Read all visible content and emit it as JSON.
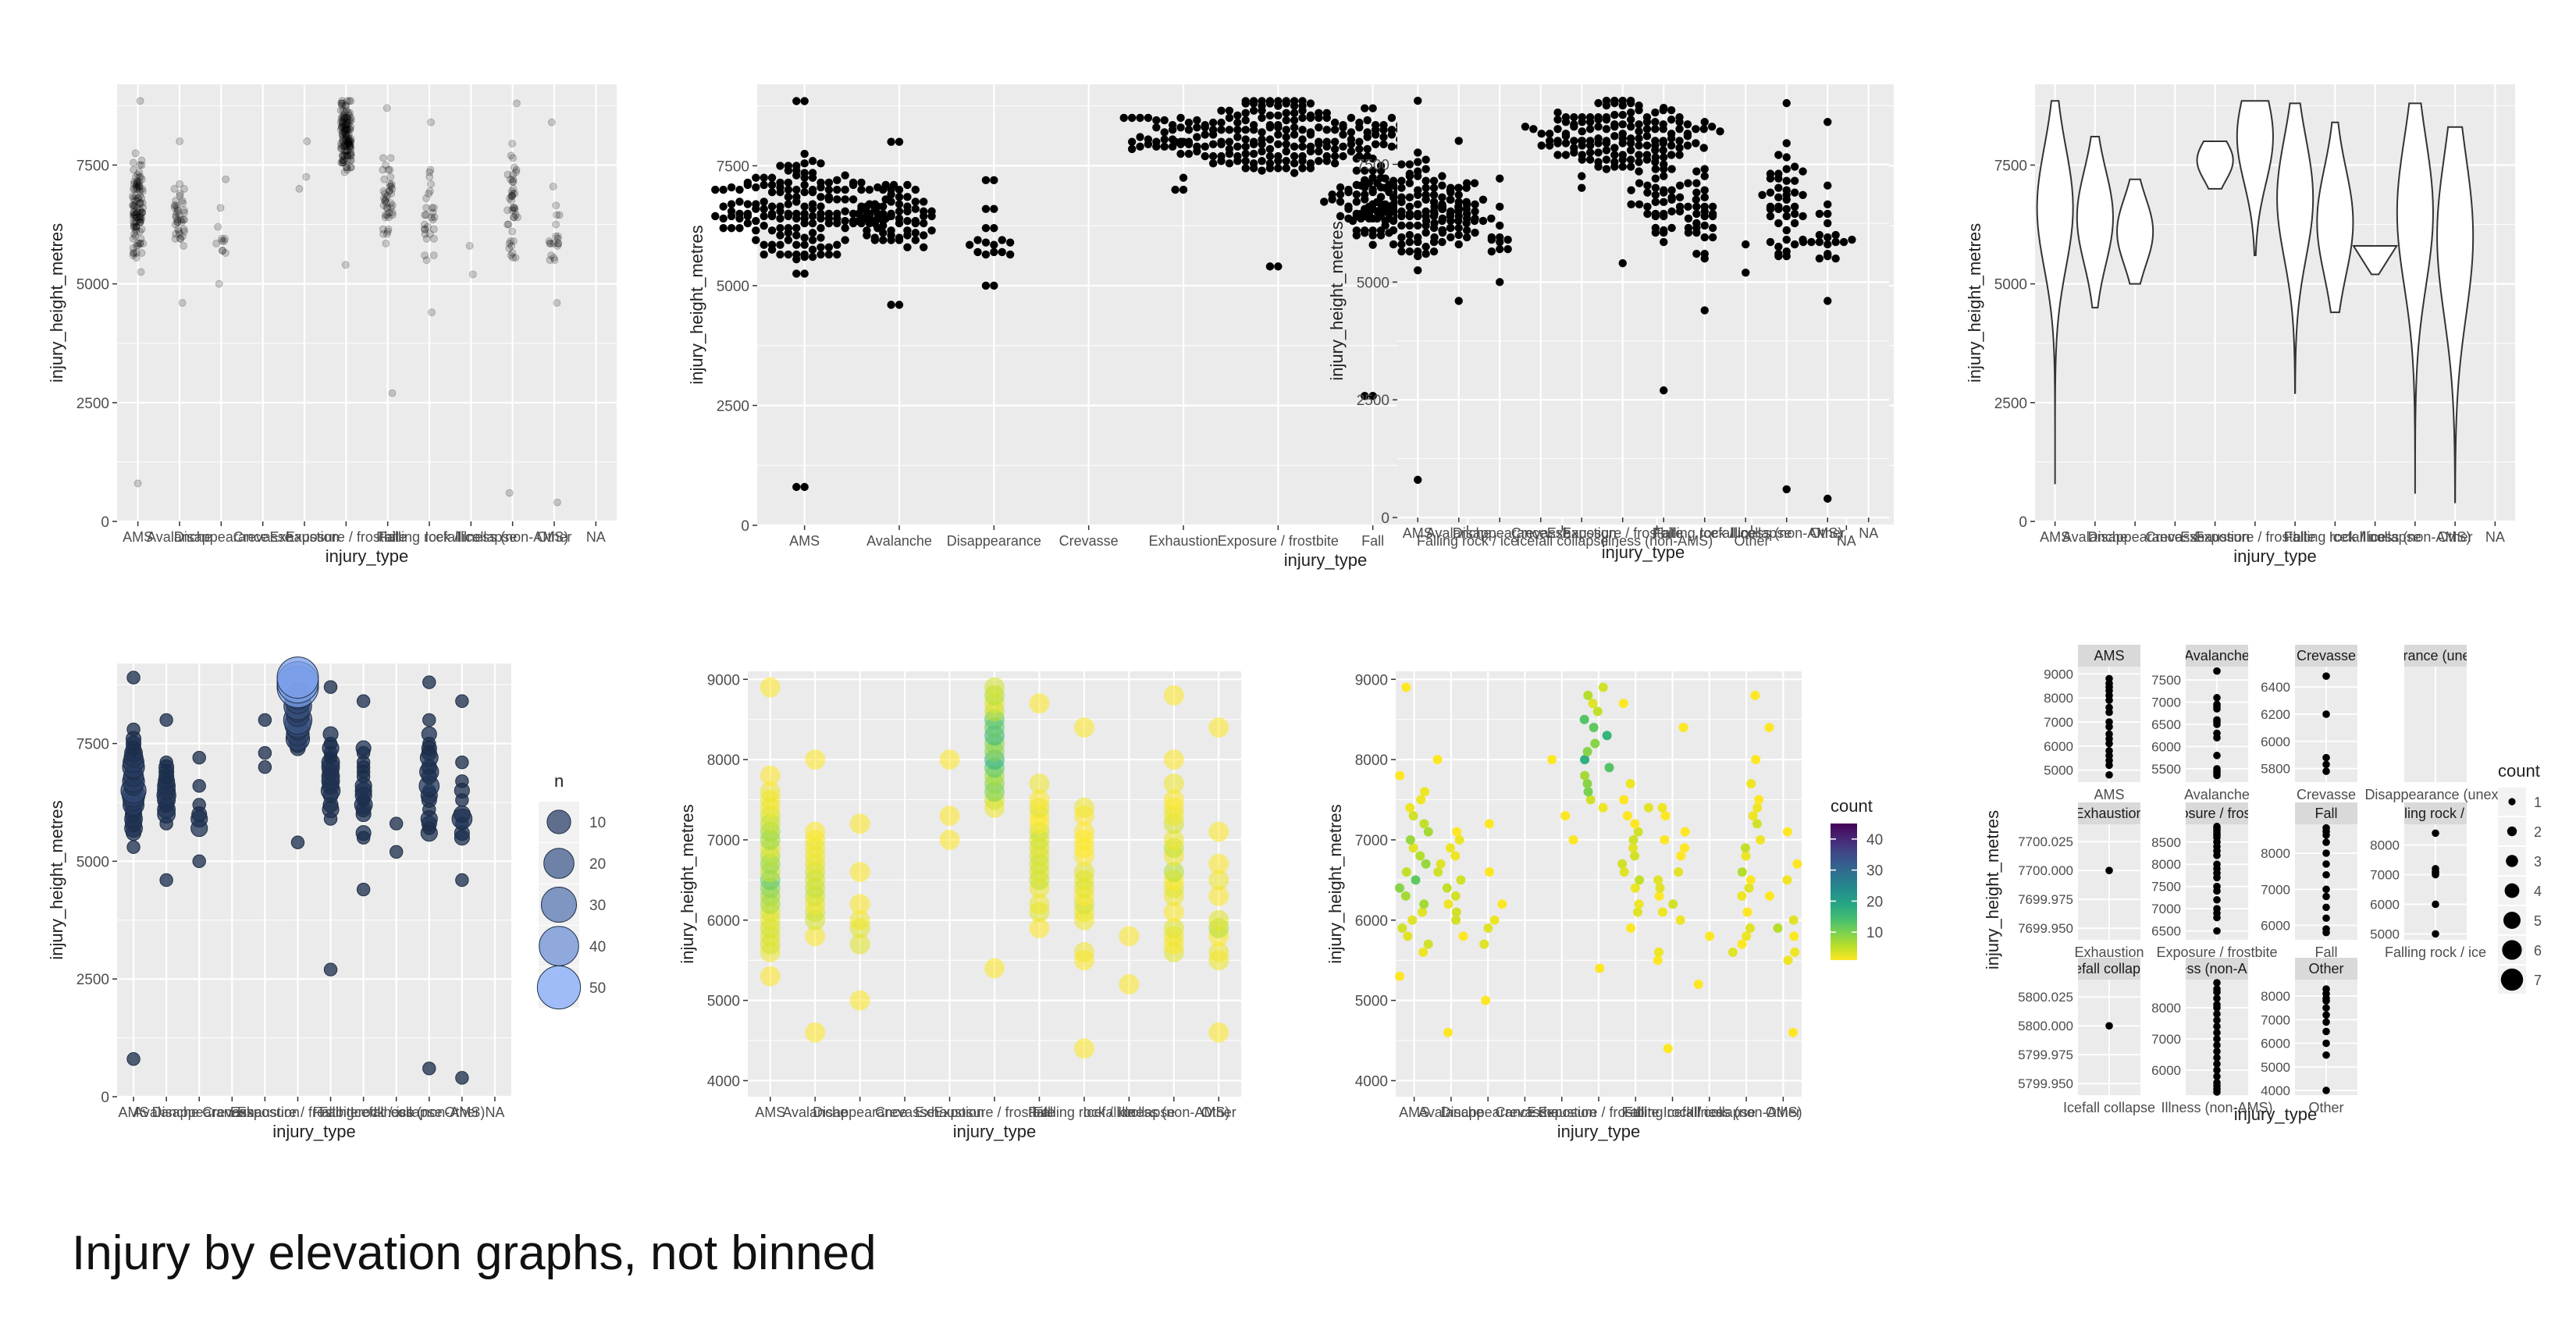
{
  "page": {
    "caption": "Injury by elevation graphs, not binned",
    "panel_bg": "#ebebeb",
    "grid_color": "#ffffff",
    "text_color": "#4d4d4d"
  },
  "chart_data": [
    {
      "id": "p1",
      "type": "scatter",
      "variant": "jitter-alpha",
      "title": "",
      "xlabel": "injury_type",
      "ylabel": "injury_height_metres",
      "categories": [
        "AMS",
        "Avalanche",
        "Disappearance",
        "Crevasse",
        "Exhaustion",
        "Exposure / frostbite",
        "Fall",
        "Falling rock / ice",
        "Icefall collapse",
        "Illness (non-AMS)",
        "Other",
        "NA"
      ],
      "ylim": [
        0,
        9200
      ],
      "yticks": [
        0,
        2500,
        5000,
        7500
      ],
      "summary": [
        {
          "category": "AMS",
          "min": 800,
          "max": 8850,
          "n": 110
        },
        {
          "category": "Avalanche",
          "min": 4600,
          "max": 8000,
          "n": 40
        },
        {
          "category": "Disappearance",
          "min": 5000,
          "max": 7200,
          "n": 12
        },
        {
          "category": "Exposure / frostbite",
          "min": 5400,
          "max": 8850,
          "n": 130
        },
        {
          "category": "Fall",
          "min": 2700,
          "max": 8700,
          "n": 45
        },
        {
          "category": "Falling rock / ice",
          "min": 4400,
          "max": 8400,
          "n": 30
        },
        {
          "category": "Icefall collapse",
          "min": 5200,
          "max": 5800,
          "n": 2
        },
        {
          "category": "Illness (non-AMS)",
          "min": 600,
          "max": 8800,
          "n": 45
        },
        {
          "category": "Other",
          "min": 400,
          "max": 8400,
          "n": 22
        }
      ]
    },
    {
      "id": "p2",
      "type": "scatter",
      "variant": "beeswarm",
      "title": "",
      "xlabel": "injury_type",
      "ylabel": "injury_height_metres",
      "categories": [
        "AMS",
        "Avalanche",
        "Disappearance",
        "Crevasse",
        "Exhaustion",
        "Exposure / frostbite",
        "Fall",
        "Falling rock / ice",
        "Icefall collapse",
        "Illness (non-AMS)",
        "Other",
        "NA"
      ],
      "ylim": [
        0,
        9200
      ],
      "yticks": [
        0,
        2500,
        5000,
        7500
      ]
    },
    {
      "id": "p3",
      "type": "scatter",
      "variant": "beeswarm-compact",
      "title": "",
      "xlabel": "injury_type",
      "ylabel": "injury_height_metres",
      "categories": [
        "AMS",
        "Avalanche",
        "Disappearance",
        "Crevasse",
        "Exhaustion",
        "Exposure / frostbite",
        "Fall",
        "Falling rock / ice",
        "Icefall collapse",
        "Illness (non-AMS)",
        "Other",
        "NA"
      ],
      "ylim": [
        0,
        9200
      ],
      "yticks": [
        0,
        2500,
        5000,
        7500
      ]
    },
    {
      "id": "p4",
      "type": "violin",
      "title": "",
      "xlabel": "injury_type",
      "ylabel": "injury_height_metres",
      "categories": [
        "AMS",
        "Avalanche",
        "Disappearance",
        "Crevasse",
        "Exhaustion",
        "Exposure / frostbite",
        "Fall",
        "Falling rock / ice",
        "Icefall collapse",
        "Illness (non-AMS)",
        "Other",
        "NA"
      ],
      "ylim": [
        0,
        9200
      ],
      "yticks": [
        0,
        2500,
        5000,
        7500
      ],
      "violins": [
        {
          "category": "AMS",
          "min": 800,
          "max": 8850
        },
        {
          "category": "Avalanche",
          "min": 4500,
          "max": 8100
        },
        {
          "category": "Disappearance",
          "min": 5000,
          "max": 7200
        },
        {
          "category": "Exhaustion",
          "min": 7000,
          "max": 8000
        },
        {
          "category": "Exposure / frostbite",
          "min": 5600,
          "max": 8850
        },
        {
          "category": "Fall",
          "min": 2700,
          "max": 8800
        },
        {
          "category": "Falling rock / ice",
          "min": 4400,
          "max": 8400
        },
        {
          "category": "Icefall collapse",
          "min": 5200,
          "max": 5800
        },
        {
          "category": "Illness (non-AMS)",
          "min": 600,
          "max": 8800
        },
        {
          "category": "Other",
          "min": 400,
          "max": 8300
        }
      ]
    },
    {
      "id": "p5",
      "type": "scatter",
      "variant": "count-size",
      "title": "",
      "xlabel": "injury_type",
      "ylabel": "injury_height_metres",
      "categories": [
        "AMS",
        "Avalanche",
        "Disappearance",
        "Crevasse",
        "Exhaustion",
        "Exposure / frostbite",
        "Fall",
        "Falling rock / ice",
        "Icefall collapse",
        "Illness (non-AMS)",
        "Other",
        "NA"
      ],
      "ylim": [
        0,
        9200
      ],
      "yticks": [
        0,
        2500,
        5000,
        7500
      ],
      "legend": {
        "title": "n",
        "values": [
          10,
          20,
          30,
          40,
          50
        ],
        "position": "right"
      }
    },
    {
      "id": "p6",
      "type": "scatter",
      "variant": "count-color-big",
      "title": "",
      "xlabel": "injury_type",
      "ylabel": "injury_height_metres",
      "categories": [
        "AMS",
        "Avalanche",
        "Disappearance",
        "Crevasse",
        "Exhaustion",
        "Exposure / frostbite",
        "Fall",
        "Falling rock / ice",
        "Icefall collapse",
        "Illness (non-AMS)",
        "Other"
      ],
      "ylim": [
        3800,
        9100
      ],
      "yticks": [
        4000,
        5000,
        6000,
        7000,
        8000,
        9000
      ]
    },
    {
      "id": "p7",
      "type": "scatter",
      "variant": "count-color",
      "title": "",
      "xlabel": "injury_type",
      "ylabel": "injury_height_metres",
      "categories": [
        "AMS",
        "Avalanche",
        "Disappearance",
        "Crevasse",
        "Exhaustion",
        "Exposure / frostbite",
        "Fall",
        "Falling rock / ice",
        "Icefall collapse",
        "Illness (non-AMS)",
        "Other"
      ],
      "ylim": [
        3800,
        9100
      ],
      "yticks": [
        4000,
        5000,
        6000,
        7000,
        8000,
        9000
      ],
      "legend": {
        "title": "count",
        "values": [
          10,
          20,
          30,
          40
        ],
        "scale": "viridis",
        "position": "right"
      }
    },
    {
      "id": "p8",
      "type": "scatter",
      "variant": "facets",
      "title": "",
      "xlabel": "injury_type",
      "ylabel": "injury_height_metres",
      "legend": {
        "title": "count",
        "values": [
          1,
          2,
          3,
          4,
          5,
          6,
          7
        ],
        "position": "right"
      },
      "facets": [
        {
          "strip": "AMS",
          "xlabel": "AMS",
          "yticks": [
            "9000",
            "8000",
            "7000",
            "6000",
            "5000"
          ],
          "ylim": [
            4500,
            9300
          ],
          "values": [
            8800,
            8600,
            8450,
            8300,
            8100,
            7900,
            7600,
            7400,
            7000,
            6800,
            6500,
            6300,
            6100,
            5800,
            5600,
            5400,
            5200,
            4800
          ]
        },
        {
          "strip": "Avalanche",
          "xlabel": "Avalanche",
          "yticks": [
            "7500",
            "7000",
            "6500",
            "6000",
            "5500"
          ],
          "ylim": [
            5200,
            7800
          ],
          "values": [
            7700,
            7100,
            6950,
            6900,
            6850,
            6600,
            6550,
            6500,
            6300,
            6200,
            5800,
            5500,
            5450,
            5400,
            5350
          ]
        },
        {
          "strip": "Crevasse",
          "xlabel": "Crevasse",
          "yticks": [
            "6400",
            "6200",
            "6000",
            "5800"
          ],
          "ylim": [
            5700,
            6550
          ],
          "values": [
            6480,
            6200,
            5880,
            5830,
            5780
          ]
        },
        {
          "strip": "Disappearance (unexplained)",
          "xlabel": "Disappearance (unexp",
          "yticks": [],
          "ylim": [
            0,
            1
          ],
          "values": []
        },
        {
          "strip": "Exhaustion",
          "xlabel": "Exhaustion",
          "yticks": [
            "7700.025",
            "7700.000",
            "7699.975",
            "7699.950"
          ],
          "ylim": [
            7699.94,
            7700.04
          ],
          "values": [
            7700
          ]
        },
        {
          "strip": "Exposure / frostbite",
          "xlabel": "Exposure / frostbite",
          "yticks": [
            "8500",
            "8000",
            "7500",
            "7000",
            "6500"
          ],
          "ylim": [
            6300,
            8900
          ],
          "values": [
            8850,
            8800,
            8750,
            8700,
            8650,
            8600,
            8500,
            8400,
            8300,
            8200,
            8000,
            7900,
            7800,
            7700,
            7500,
            7400,
            7200,
            7000,
            6900,
            6800,
            6500
          ]
        },
        {
          "strip": "Fall",
          "xlabel": "Fall",
          "yticks": [
            "8000",
            "7000",
            "6000"
          ],
          "ylim": [
            5600,
            8800
          ],
          "values": [
            8700,
            8600,
            8500,
            8300,
            8000,
            7700,
            7400,
            7000,
            6800,
            6500,
            6200,
            5900,
            5800
          ]
        },
        {
          "strip": "Falling rock / ice",
          "xlabel": "Falling rock / ice",
          "yticks": [
            "8000",
            "7000",
            "6000",
            "5000"
          ],
          "ylim": [
            4800,
            8700
          ],
          "values": [
            8400,
            7200,
            7100,
            7050,
            7000,
            6000,
            5000
          ]
        },
        {
          "strip": "Icefall collapse",
          "xlabel": "Icefall collapse",
          "yticks": [
            "5800.025",
            "5800.000",
            "5799.975",
            "5799.950"
          ],
          "ylim": [
            5799.94,
            5800.04
          ],
          "values": [
            5800
          ]
        },
        {
          "strip": "Illness (non-AMS)",
          "xlabel": "Illness (non-AMS)",
          "yticks": [
            "8000",
            "7000",
            "6000"
          ],
          "ylim": [
            5200,
            8900
          ],
          "values": [
            8800,
            8600,
            8500,
            8300,
            8100,
            8000,
            7800,
            7600,
            7400,
            7200,
            7000,
            6800,
            6600,
            6400,
            6200,
            6000,
            5800,
            5600,
            5500,
            5400,
            5300
          ]
        },
        {
          "strip": "Other",
          "xlabel": "Other",
          "yticks": [
            "8000",
            "7000",
            "6000",
            "5000",
            "4000"
          ],
          "ylim": [
            3800,
            8700
          ],
          "values": [
            8300,
            8100,
            7900,
            7800,
            7500,
            7200,
            6900,
            6500,
            6000,
            5500,
            4000
          ]
        }
      ]
    }
  ]
}
